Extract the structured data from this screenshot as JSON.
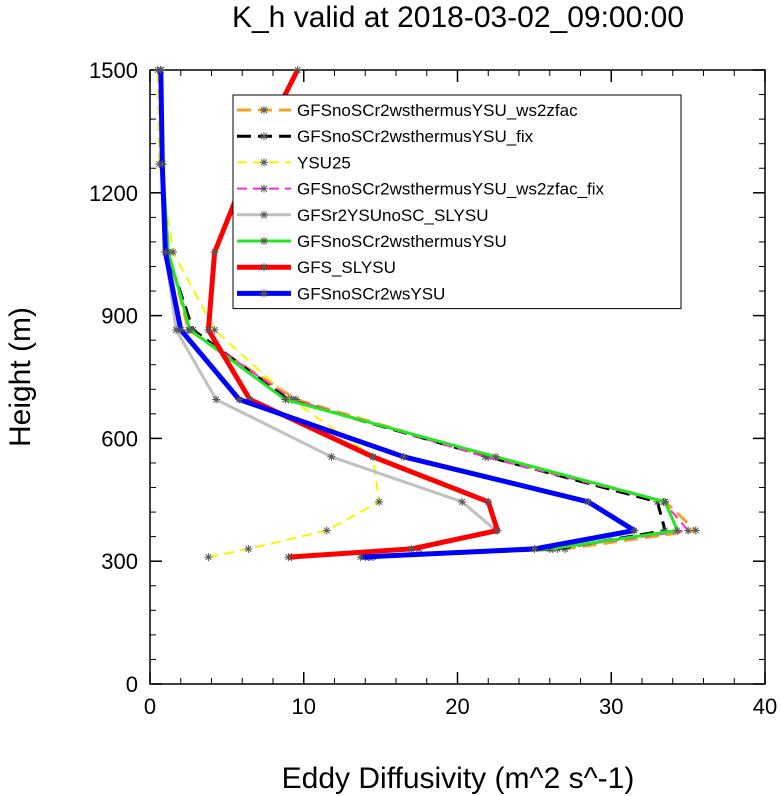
{
  "chart_data": {
    "type": "line",
    "title": "K_h valid at 2018-03-02_09:00:00",
    "xlabel": "Eddy Diffusivity (m^2 s^-1)",
    "ylabel": "Height (m)",
    "xlim": [
      0,
      40
    ],
    "ylim": [
      0,
      1500
    ],
    "x_ticks": [
      0,
      10,
      20,
      30,
      40
    ],
    "y_ticks": [
      0,
      300,
      600,
      900,
      1200,
      1500
    ],
    "x_minor_step": 2,
    "y_minor_step": 60,
    "legend_position": "top-right",
    "heights": [
      310,
      330,
      375,
      445,
      555,
      695,
      865,
      1055,
      1270,
      1500
    ],
    "series": [
      {
        "name": "GFSnoSCr2wsthermusYSU_ws2zfac",
        "color": "#f4a02a",
        "dash": "dashed",
        "width": 3,
        "values": [
          14.5,
          27.0,
          35.5,
          33.5,
          22.0,
          9.5,
          2.5,
          1.2,
          0.8,
          0.7
        ]
      },
      {
        "name": "GFSnoSCr2wsthermusYSU_fix",
        "color": "#000000",
        "dash": "dashed",
        "width": 3,
        "values": [
          14.2,
          26.5,
          33.5,
          33.0,
          22.0,
          9.0,
          2.8,
          1.1,
          0.8,
          0.7
        ]
      },
      {
        "name": "YSU25",
        "color": "#f5f500",
        "dash": "dashed",
        "width": 2,
        "values": [
          3.8,
          6.4,
          11.5,
          14.9,
          14.5,
          9.2,
          4.2,
          1.5,
          0.6,
          0.5
        ]
      },
      {
        "name": "GFSnoSCr2wsthermusYSU_ws2zfac_fix",
        "color": "#ff2ad4",
        "dash": "dashed",
        "width": 2,
        "values": [
          14.3,
          26.2,
          35.0,
          33.4,
          21.8,
          9.3,
          2.6,
          1.2,
          0.8,
          0.7
        ]
      },
      {
        "name": "GFSr2YSUnoSC_SLYSU",
        "color": "#c0c0c0",
        "dash": "solid",
        "width": 3,
        "values": [
          9.2,
          17.5,
          22.5,
          20.3,
          11.8,
          4.3,
          1.7,
          1.0,
          0.8,
          0.7
        ]
      },
      {
        "name": "GFSnoSCr2wsthermusYSU",
        "color": "#22e822",
        "dash": "solid",
        "width": 3,
        "values": [
          14.0,
          26.0,
          34.3,
          33.5,
          22.5,
          8.8,
          2.6,
          1.2,
          0.8,
          0.7
        ]
      },
      {
        "name": "GFS_SLYSU",
        "color": "#ff0000",
        "dash": "solid",
        "width": 5,
        "values": [
          9.0,
          17.0,
          22.6,
          22.0,
          14.5,
          6.5,
          3.8,
          4.2,
          6.5,
          9.6
        ]
      },
      {
        "name": "GFSnoSCr2wsYSU",
        "color": "#0000ff",
        "dash": "solid",
        "width": 5,
        "values": [
          13.7,
          25.0,
          31.5,
          28.5,
          16.5,
          5.8,
          2.0,
          1.0,
          0.8,
          0.7
        ]
      }
    ]
  }
}
